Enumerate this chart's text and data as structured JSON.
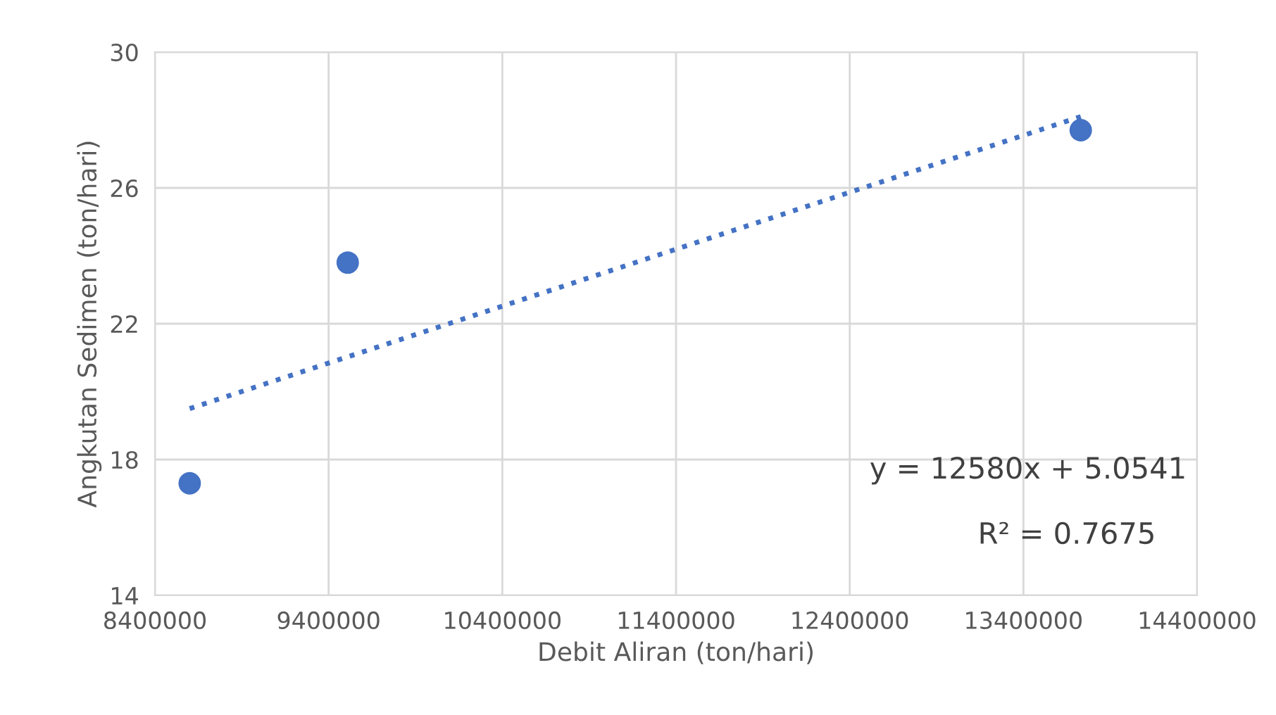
{
  "chart_data": {
    "type": "scatter",
    "xlabel": "Debit Aliran (ton/hari)",
    "ylabel": "Angkutan Sedimen (ton/hari)",
    "x": [
      8600000,
      9510000,
      13730000
    ],
    "series": [
      {
        "color": "#4472c4",
        "marker": "circle",
        "values": [
          17.3,
          23.8,
          27.7
        ]
      },
      {
        "type": "line",
        "color": "#4472c4",
        "line_style": "dotted",
        "marker": "none",
        "x": [
          8600000,
          13730000
        ],
        "values": [
          19.5,
          28.1
        ]
      }
    ],
    "xlim": [
      8400000,
      14400000
    ],
    "xticks": [
      8400000,
      9400000,
      10400000,
      11400000,
      12400000,
      13400000,
      14400000
    ],
    "ylim": [
      14,
      30
    ],
    "yticks": [
      14,
      18,
      22,
      26,
      30
    ],
    "grid": true,
    "legend": false,
    "annotations": [
      "y = 12580x + 5.0541",
      "R² = 0.7675"
    ]
  }
}
